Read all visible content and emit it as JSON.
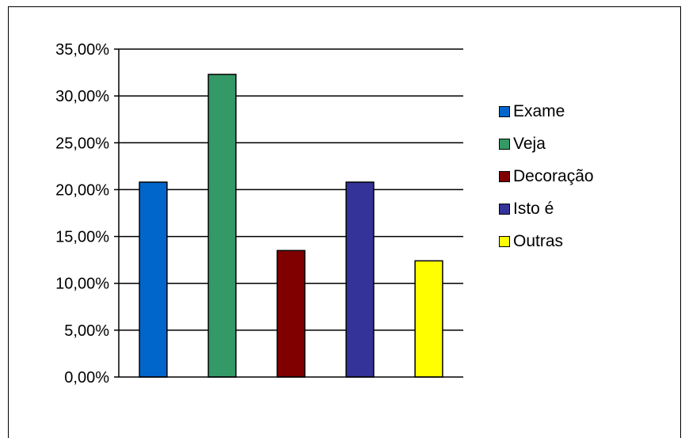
{
  "chart_data": {
    "type": "bar",
    "categories": [
      "Exame",
      "Veja",
      "Decoração",
      "Isto é",
      "Outras"
    ],
    "values": [
      20.8,
      32.3,
      13.5,
      20.8,
      12.4
    ],
    "colors": [
      "#0066CC",
      "#339966",
      "#800000",
      "#333399",
      "#FFFF00"
    ],
    "ylim": [
      0,
      35
    ],
    "yticks": [
      0,
      5,
      10,
      15,
      20,
      25,
      30,
      35
    ],
    "ytick_labels": [
      "0,00%",
      "5,00%",
      "10,00%",
      "15,00%",
      "20,00%",
      "25,00%",
      "30,00%",
      "35,00%"
    ],
    "grid": true,
    "legend_position": "right",
    "title": "",
    "xlabel": "",
    "ylabel": ""
  },
  "legend": {
    "items": [
      {
        "label": "Exame",
        "color": "#0066CC"
      },
      {
        "label": "Veja",
        "color": "#339966"
      },
      {
        "label": "Decoração",
        "color": "#800000"
      },
      {
        "label": "Isto é",
        "color": "#333399"
      },
      {
        "label": "Outras",
        "color": "#FFFF00"
      }
    ]
  }
}
